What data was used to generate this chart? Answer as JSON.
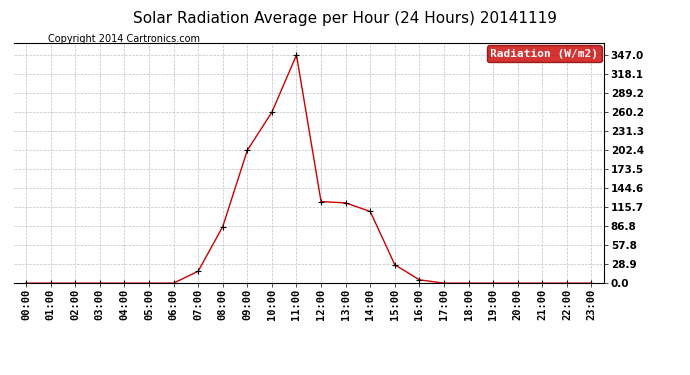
{
  "title": "Solar Radiation Average per Hour (24 Hours) 20141119",
  "copyright": "Copyright 2014 Cartronics.com",
  "legend_label": "Radiation (W/m2)",
  "hours": [
    "00:00",
    "01:00",
    "02:00",
    "03:00",
    "04:00",
    "05:00",
    "06:00",
    "07:00",
    "08:00",
    "09:00",
    "10:00",
    "11:00",
    "12:00",
    "13:00",
    "14:00",
    "15:00",
    "16:00",
    "17:00",
    "18:00",
    "19:00",
    "20:00",
    "21:00",
    "22:00",
    "23:00"
  ],
  "values": [
    0,
    0,
    0,
    0,
    0,
    0,
    0,
    18,
    86,
    202,
    260,
    347,
    124,
    122,
    109,
    28,
    5,
    0,
    0,
    0,
    0,
    0,
    0,
    0
  ],
  "line_color": "#cc0000",
  "marker_color": "#000000",
  "background_color": "#ffffff",
  "plot_bg_color": "#ffffff",
  "grid_color": "#c0c0c0",
  "yticks": [
    0.0,
    28.9,
    57.8,
    86.8,
    115.7,
    144.6,
    173.5,
    202.4,
    231.3,
    260.2,
    289.2,
    318.1,
    347.0
  ],
  "ylim": [
    0,
    365
  ],
  "title_fontsize": 11,
  "copyright_fontsize": 7,
  "legend_fontsize": 8,
  "tick_fontsize": 7.5
}
